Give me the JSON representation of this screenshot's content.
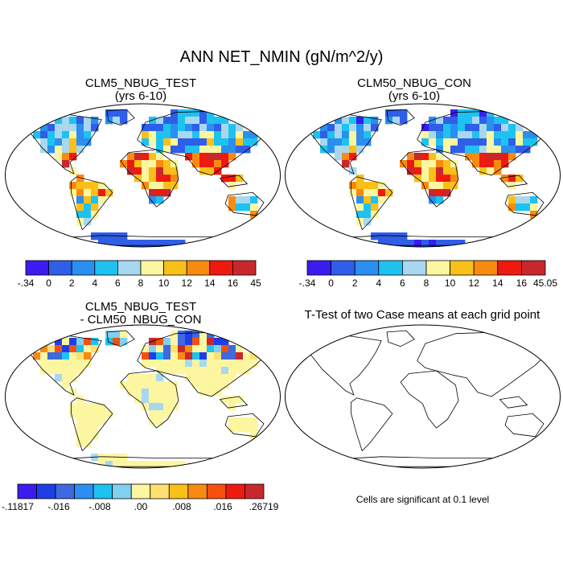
{
  "figure": {
    "title": "ANN NET_NMIN (gN/m^2/y)"
  },
  "panels": [
    {
      "title_line1": "CLM5_NBUG_TEST",
      "title_line2": "(yrs 6-10)",
      "field": "test",
      "colorbar": {
        "colors": [
          "#3a1cf0",
          "#2f5ee8",
          "#2a8ff0",
          "#1ec2f0",
          "#a8d8f0",
          "#fdf6a0",
          "#f9c01a",
          "#f98a10",
          "#ee1a10",
          "#c8282c"
        ],
        "labels": [
          "-.34",
          "0",
          "2",
          "4",
          "6",
          "8",
          "10",
          "12",
          "14",
          "16",
          "45"
        ]
      }
    },
    {
      "title_line1": "CLM50_NBUG_CON",
      "title_line2": "(yrs 6-10)",
      "field": "con",
      "colorbar": {
        "colors": [
          "#3a1cf0",
          "#2f5ee8",
          "#2a8ff0",
          "#1ec2f0",
          "#a8d8f0",
          "#fdf6a0",
          "#f9c01a",
          "#f98a10",
          "#ee1a10",
          "#c8282c"
        ],
        "labels": [
          "-.34",
          "0",
          "2",
          "4",
          "6",
          "8",
          "10",
          "12",
          "14",
          "16",
          "45.05"
        ]
      }
    },
    {
      "title_line1": "CLM5_NBUG_TEST",
      "title_line2": "- CLM50_NBUG_CON",
      "field": "diff",
      "colorbar": {
        "colors": [
          "#3a1cf0",
          "#1e3ee8",
          "#3d6ae0",
          "#2a8ff0",
          "#1ec2f0",
          "#80d0f0",
          "#fdf6a0",
          "#fde070",
          "#f9c01a",
          "#f98a10",
          "#f55010",
          "#ee1a10",
          "#c8282c"
        ],
        "labels": [
          "-.11817",
          "-.016",
          "-.008",
          ".00",
          ".008",
          ".016",
          ".26719"
        ]
      }
    },
    {
      "title_line1": "T-Test of two Case means at each grid point",
      "title_line2": "",
      "field": "ttest",
      "note": "Cells are significant at 0.1 level"
    }
  ]
}
